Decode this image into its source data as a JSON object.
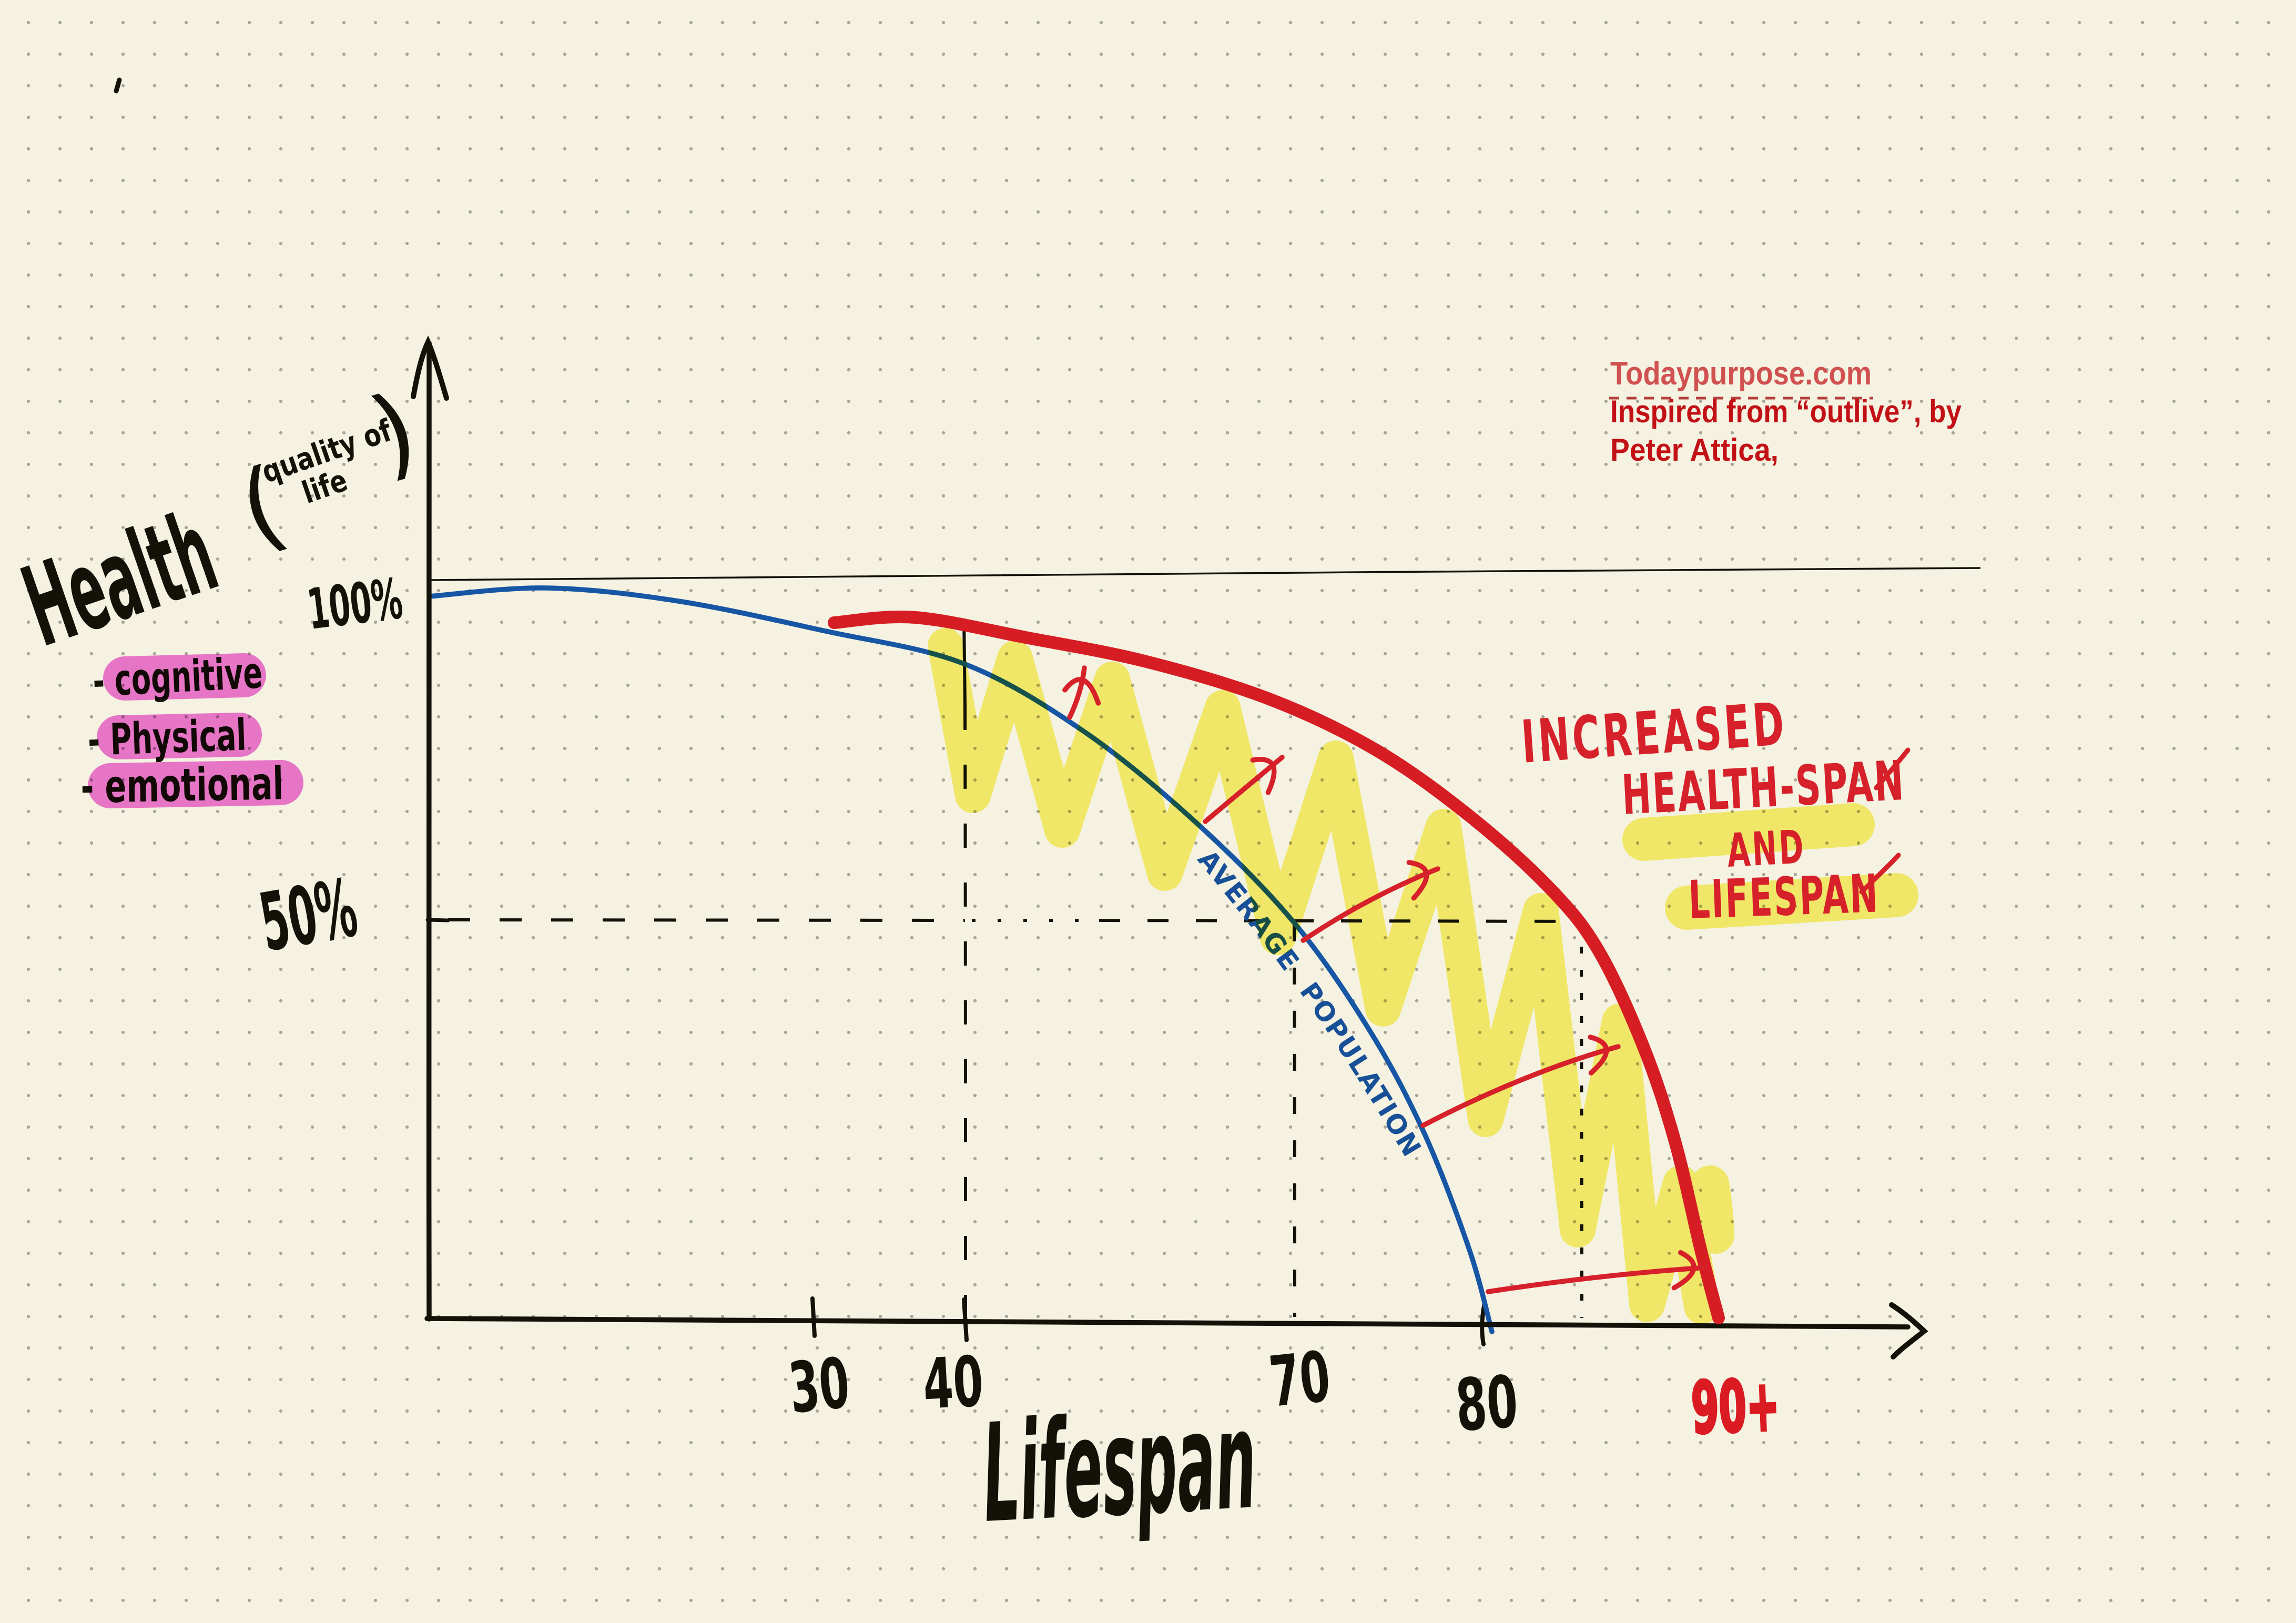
{
  "page": {
    "background_color": "#f5f2e2",
    "dot_grid_color": "#a7a699",
    "ink_color": "#131208"
  },
  "watermark": {
    "site": "Todaypurpose.com",
    "credit_line1": "Inspired from “outlive”, by",
    "credit_line2": "Peter Attica,",
    "site_color": "#d05150",
    "credit_color": "#c21116",
    "underline_color": "#b54039"
  },
  "y_axis": {
    "title": "Health",
    "subtitle_open_paren": "(",
    "subtitle_line1": "quality of",
    "subtitle_line2": "life",
    "subtitle_close_paren": ")",
    "tick_100": "100%",
    "tick_50": "50%"
  },
  "x_axis": {
    "title": "Lifespan",
    "tick_30": "30",
    "tick_40": "40",
    "tick_70": "70",
    "tick_80": "80",
    "tick_90": "90+",
    "tick_90_color": "#da1b22"
  },
  "legend_list": {
    "highlight_color": "#f07be0",
    "item_1": "- cognitive",
    "item_2": "- Physical",
    "item_3": "- emotional"
  },
  "curves": {
    "average_label": "AVERAGE POPULATION",
    "average_color": "#1656a4",
    "average_label_color": "#185097",
    "improved_color": "#d61d24",
    "area_highlight_color": "#faf475"
  },
  "annotation": {
    "line_1": "INCREASED",
    "line_2": "HEALTH-SPAN",
    "line_3": "AND",
    "line_4": "LIFESPAN",
    "color": "#d6202a"
  },
  "chart_data": {
    "type": "line",
    "title": "Health (quality of life) vs Lifespan",
    "xlabel": "Lifespan",
    "ylabel": "Health (quality of life)",
    "x_ticks": [
      "30",
      "40",
      "70",
      "80",
      "90+"
    ],
    "y_ticks": [
      "100%",
      "50%"
    ],
    "ylim": [
      0,
      100
    ],
    "grid": "dot-paper",
    "legend_position": "none",
    "series": [
      {
        "name": "AVERAGE POPULATION",
        "color": "#1656a4",
        "style": "thin solid",
        "points_age_vs_health_pct": [
          [
            18,
            97
          ],
          [
            25,
            98
          ],
          [
            30,
            94
          ],
          [
            35,
            91
          ],
          [
            40,
            88
          ],
          [
            50,
            79
          ],
          [
            60,
            66
          ],
          [
            70,
            50
          ],
          [
            75,
            37
          ],
          [
            78,
            22
          ],
          [
            80,
            3
          ],
          [
            80.5,
            0
          ]
        ]
      },
      {
        "name": "INCREASED HEALTH-SPAN AND LIFESPAN",
        "color": "#d61d24",
        "style": "thick solid",
        "points_age_vs_health_pct": [
          [
            32,
            94
          ],
          [
            36,
            95
          ],
          [
            42,
            93
          ],
          [
            50,
            91
          ],
          [
            57,
            86
          ],
          [
            63,
            81
          ],
          [
            68,
            75
          ],
          [
            74,
            66
          ],
          [
            79,
            57
          ],
          [
            82,
            49
          ],
          [
            85,
            37
          ],
          [
            87,
            24
          ],
          [
            89,
            9
          ],
          [
            90,
            0
          ]
        ]
      }
    ],
    "annotations": [
      "INCREASED HEALTH-SPAN AND LIFESPAN",
      "AVERAGE POPULATION",
      "- cognitive",
      "- Physical",
      "- emotional",
      "Todaypurpose.com",
      "Inspired from “outlive”, by Peter Attica,"
    ]
  }
}
